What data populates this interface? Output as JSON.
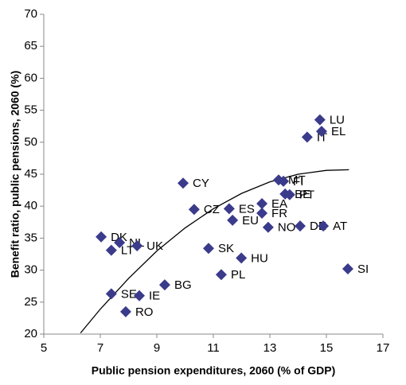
{
  "chart_data": {
    "type": "scatter",
    "x_label": "Public pension expenditures, 2060 (% of GDP)",
    "y_label": "Benefit ratio, public pensions, 2060 (%)",
    "xlim": [
      5,
      17
    ],
    "xticks": [
      5,
      7,
      9,
      11,
      13,
      15,
      17
    ],
    "ylim": [
      20,
      70
    ],
    "yticks": [
      20,
      25,
      30,
      35,
      40,
      45,
      50,
      55,
      60,
      65,
      70
    ],
    "color": "#3b3b8c",
    "points": [
      {
        "label": "LU",
        "x": 14.77,
        "y": 53.5
      },
      {
        "label": "IT",
        "x": 14.32,
        "y": 50.8
      },
      {
        "label": "EL",
        "x": 14.83,
        "y": 51.7
      },
      {
        "label": "MT",
        "x": 13.31,
        "y": 44.1
      },
      {
        "label": "FI",
        "x": 13.48,
        "y": 43.9
      },
      {
        "label": "BE",
        "x": 13.54,
        "y": 41.9
      },
      {
        "label": "PT",
        "x": 13.7,
        "y": 41.8
      },
      {
        "label": "EA",
        "x": 12.72,
        "y": 40.4
      },
      {
        "label": "FR",
        "x": 12.72,
        "y": 38.9
      },
      {
        "label": "CY",
        "x": 9.93,
        "y": 43.6
      },
      {
        "label": "CZ",
        "x": 10.32,
        "y": 39.5
      },
      {
        "label": "ES",
        "x": 11.56,
        "y": 39.6
      },
      {
        "label": "EU",
        "x": 11.68,
        "y": 37.8
      },
      {
        "label": "NO",
        "x": 12.94,
        "y": 36.7
      },
      {
        "label": "DE",
        "x": 14.07,
        "y": 36.9
      },
      {
        "label": "AT",
        "x": 14.89,
        "y": 36.9
      },
      {
        "label": "SI",
        "x": 15.76,
        "y": 30.2
      },
      {
        "label": "DK",
        "x": 7.03,
        "y": 35.2
      },
      {
        "label": "LT",
        "x": 7.39,
        "y": 33.1
      },
      {
        "label": "NL",
        "x": 7.68,
        "y": 34.3
      },
      {
        "label": "UK",
        "x": 8.3,
        "y": 33.8
      },
      {
        "label": "SK",
        "x": 10.83,
        "y": 33.4
      },
      {
        "label": "HU",
        "x": 11.99,
        "y": 31.9
      },
      {
        "label": "PL",
        "x": 11.28,
        "y": 29.3
      },
      {
        "label": "BG",
        "x": 9.28,
        "y": 27.7
      },
      {
        "label": "SE",
        "x": 7.39,
        "y": 26.3
      },
      {
        "label": "IE",
        "x": 8.38,
        "y": 26.0
      },
      {
        "label": "RO",
        "x": 7.9,
        "y": 23.5
      }
    ],
    "trendline": {
      "color": "#000000",
      "x": [
        6.3,
        7,
        8,
        9,
        10,
        11,
        12,
        13,
        14,
        15,
        15.8
      ],
      "y": [
        20.17,
        23.9,
        28.7,
        33.0,
        36.6,
        39.6,
        42.0,
        43.8,
        45.0,
        45.6,
        45.7
      ]
    }
  }
}
